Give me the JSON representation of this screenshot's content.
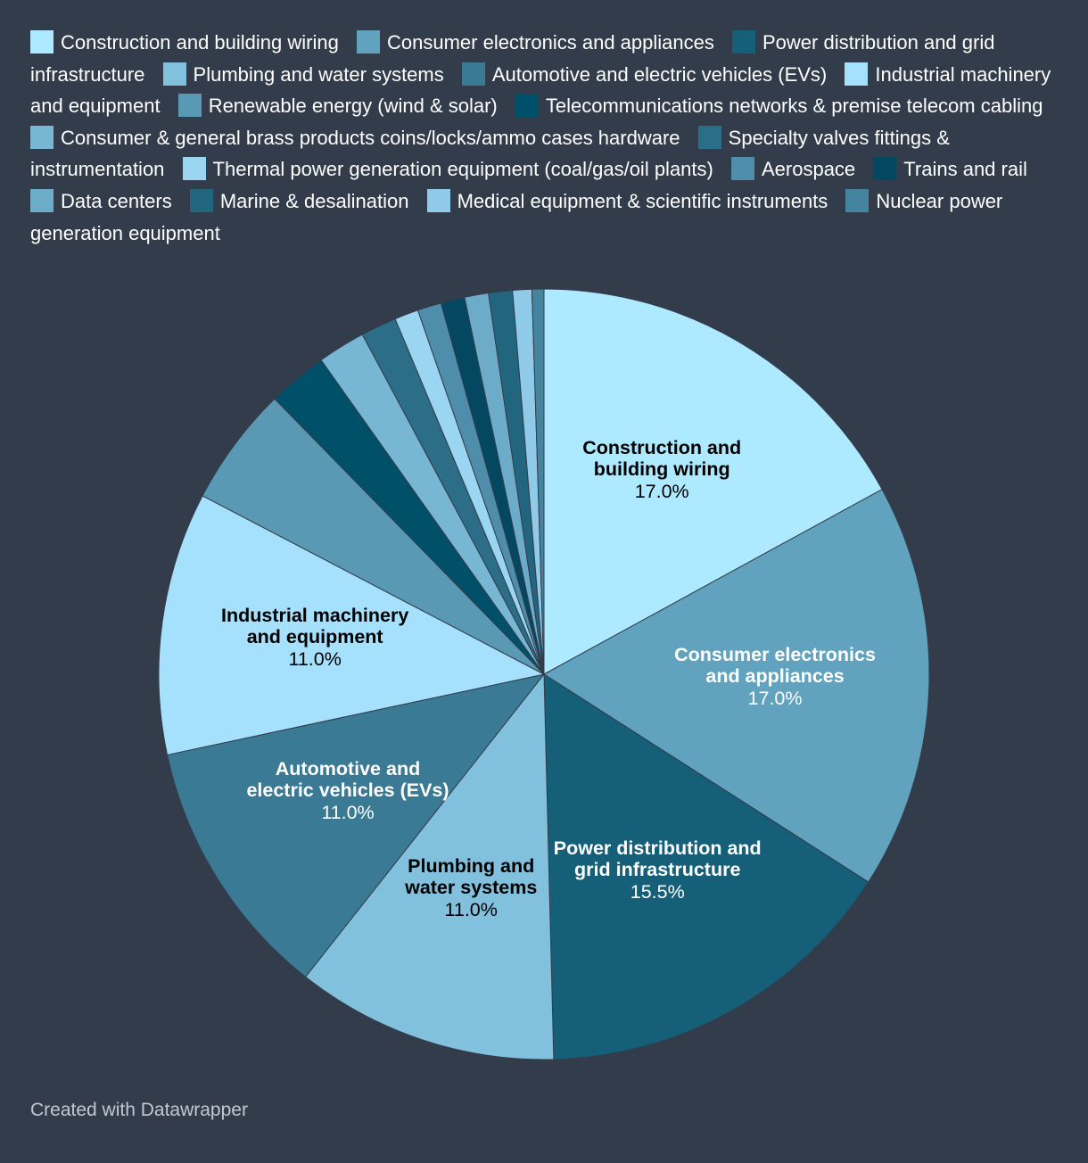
{
  "chart_data": {
    "type": "pie",
    "title": "",
    "slices": [
      {
        "name": "Construction and building wiring",
        "value": 17.0,
        "color": "#aeeaff",
        "label": "Construction and building wiring",
        "value_label": "17.0%",
        "label_lines": [
          "Construction and",
          "building wiring"
        ],
        "text_color": "#000000"
      },
      {
        "name": "Consumer electronics and appliances",
        "value": 17.0,
        "color": "#61a3bf",
        "label": "Consumer electronics and appliances",
        "value_label": "17.0%",
        "label_lines": [
          "Consumer electronics",
          "and appliances"
        ],
        "text_color": "#ffffff"
      },
      {
        "name": "Power distribution and grid infrastructure",
        "value": 15.5,
        "color": "#155f79",
        "label": "Power distribution and grid infrastructure",
        "value_label": "15.5%",
        "label_lines": [
          "Power distribution and",
          "grid infrastructure"
        ],
        "text_color": "#ffffff"
      },
      {
        "name": "Plumbing and water systems",
        "value": 11.0,
        "color": "#81c1dd",
        "label": "Plumbing and water systems",
        "value_label": "11.0%",
        "label_lines": [
          "Plumbing and",
          "water systems"
        ],
        "text_color": "#000000"
      },
      {
        "name": "Automotive and electric vehicles (EVs)",
        "value": 11.0,
        "color": "#3a7a94",
        "label": "Automotive and electric vehicles (EVs)",
        "value_label": "11.0%",
        "label_lines": [
          "Automotive and",
          "electric vehicles (EVs)"
        ],
        "text_color": "#ffffff"
      },
      {
        "name": "Industrial machinery and equipment",
        "value": 11.0,
        "color": "#a5e1fc",
        "label": "Industrial machinery and equipment",
        "value_label": "11.0%",
        "label_lines": [
          "Industrial machinery",
          "and equipment"
        ],
        "text_color": "#000000"
      },
      {
        "name": "Renewable energy (wind & solar)",
        "value": 5.0,
        "color": "#5999b4",
        "label": "Renewable energy (wind & solar)"
      },
      {
        "name": "Telecommunications networks & premise telecom cabling",
        "value": 2.5,
        "color": "#01506a",
        "label": "Telecommunications networks & premise telecom cabling"
      },
      {
        "name": "Consumer & general brass products coins/locks/ammo cases hardware",
        "value": 2.0,
        "color": "#78b7d3",
        "label": "Consumer & general brass products coins/locks/ammo cases hardware"
      },
      {
        "name": "Specialty valves fittings & instrumentation",
        "value": 1.5,
        "color": "#2c6d87",
        "label": "Specialty valves fittings & instrumentation"
      },
      {
        "name": "Thermal power generation equipment (coal/gas/oil plants)",
        "value": 1.0,
        "color": "#9ad6f2",
        "label": "Thermal power generation equipment (coal/gas/oil plants)"
      },
      {
        "name": "Aerospace",
        "value": 1.0,
        "color": "#4f8eaa",
        "label": "Aerospace"
      },
      {
        "name": "Trains and rail",
        "value": 1.0,
        "color": "#034860",
        "label": "Trains and rail"
      },
      {
        "name": "Data centers",
        "value": 1.0,
        "color": "#6dacc9",
        "label": "Data centers"
      },
      {
        "name": "Marine & desalination",
        "value": 1.0,
        "color": "#22657f",
        "label": "Marine & desalination"
      },
      {
        "name": "Medical equipment & scientific instruments",
        "value": 0.8,
        "color": "#8fcbe8",
        "label": "Medical equipment & scientific instruments"
      },
      {
        "name": "Nuclear power generation equipment",
        "value": 0.5,
        "color": "#45849f",
        "label": "Nuclear power generation equipment"
      }
    ],
    "legend_position": "top"
  },
  "footer": "Created with Datawrapper"
}
